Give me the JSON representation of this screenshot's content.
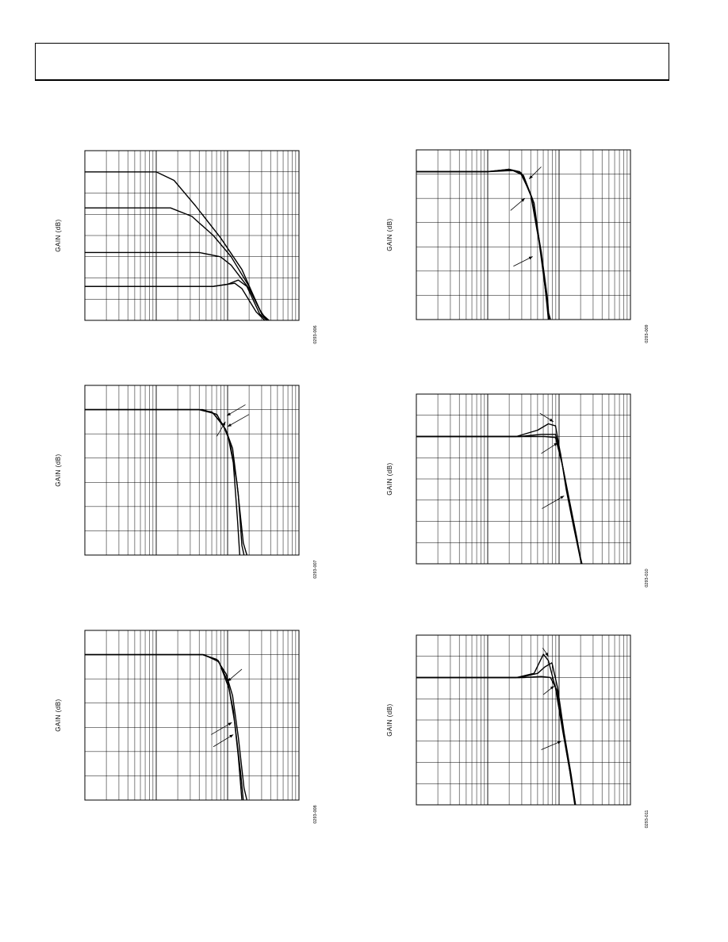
{
  "page": {
    "header_text": "",
    "accent_color": "#000000"
  },
  "chart_data": [
    {
      "id": "c1",
      "type": "line",
      "xscale": "log",
      "ylabel": "GAIN (dB)",
      "figure_id": "0293-006",
      "grid": true,
      "xdecades": 3,
      "ylim": [
        0,
        8
      ],
      "series": [
        {
          "points": [
            [
              0,
              7.0
            ],
            [
              1.0,
              7.0
            ],
            [
              1.25,
              6.6
            ],
            [
              1.55,
              5.4
            ],
            [
              1.9,
              3.9
            ],
            [
              2.2,
              2.4
            ],
            [
              2.45,
              0.5
            ],
            [
              2.55,
              0
            ]
          ]
        },
        {
          "points": [
            [
              0,
              5.3
            ],
            [
              1.2,
              5.3
            ],
            [
              1.5,
              4.9
            ],
            [
              1.8,
              4.0
            ],
            [
              2.05,
              3.0
            ],
            [
              2.3,
              1.6
            ],
            [
              2.48,
              0.3
            ],
            [
              2.56,
              0
            ]
          ]
        },
        {
          "points": [
            [
              0,
              3.2
            ],
            [
              1.6,
              3.2
            ],
            [
              1.9,
              3.0
            ],
            [
              2.05,
              2.6
            ],
            [
              2.3,
              1.5
            ],
            [
              2.48,
              0.3
            ],
            [
              2.58,
              0
            ]
          ]
        },
        {
          "points": [
            [
              0,
              1.6
            ],
            [
              1.8,
              1.6
            ],
            [
              2.0,
              1.7
            ],
            [
              2.15,
              1.9
            ],
            [
              2.27,
              1.6
            ],
            [
              2.45,
              0.3
            ],
            [
              2.55,
              0
            ]
          ]
        },
        {
          "points": [
            [
              0,
              1.6
            ],
            [
              1.8,
              1.6
            ],
            [
              2.1,
              1.75
            ],
            [
              2.2,
              1.5
            ],
            [
              2.4,
              0.4
            ],
            [
              2.52,
              0
            ]
          ]
        }
      ],
      "arrows": []
    },
    {
      "id": "c2",
      "type": "line",
      "xscale": "log",
      "ylabel": "GAIN (dB)",
      "figure_id": "0293-007",
      "grid": true,
      "xdecades": 3,
      "ylim": [
        0,
        7
      ],
      "series": [
        {
          "points": [
            [
              0,
              6.0
            ],
            [
              1.6,
              6.0
            ],
            [
              1.78,
              5.9
            ],
            [
              1.93,
              5.4
            ],
            [
              2.03,
              4.7
            ],
            [
              2.13,
              3.0
            ],
            [
              2.22,
              0.5
            ],
            [
              2.27,
              0
            ]
          ]
        },
        {
          "points": [
            [
              0,
              6.0
            ],
            [
              1.6,
              6.0
            ],
            [
              1.8,
              5.85
            ],
            [
              1.97,
              5.2
            ],
            [
              2.07,
              4.4
            ],
            [
              2.15,
              2.5
            ],
            [
              2.2,
              0.4
            ],
            [
              2.23,
              0
            ]
          ]
        },
        {
          "points": [
            [
              0,
              6.0
            ],
            [
              1.65,
              6.0
            ],
            [
              1.85,
              5.8
            ],
            [
              2.0,
              5.0
            ],
            [
              2.08,
              3.8
            ],
            [
              2.14,
              1.4
            ],
            [
              2.17,
              0
            ]
          ]
        }
      ],
      "arrows": [
        {
          "from": [
            2.25,
            6.2
          ],
          "to": [
            1.99,
            5.75
          ]
        },
        {
          "from": [
            2.3,
            5.8
          ],
          "to": [
            2.0,
            5.3
          ]
        },
        {
          "from": [
            1.85,
            4.9
          ],
          "to": [
            1.97,
            5.5
          ]
        }
      ]
    },
    {
      "id": "c3",
      "type": "line",
      "xscale": "log",
      "ylabel": "GAIN (dB)",
      "figure_id": "0293-008",
      "grid": true,
      "xdecades": 3,
      "ylim": [
        0,
        7
      ],
      "series": [
        {
          "points": [
            [
              0,
              6.0
            ],
            [
              1.65,
              6.0
            ],
            [
              1.85,
              5.8
            ],
            [
              1.98,
              5.2
            ],
            [
              2.07,
              4.3
            ],
            [
              2.15,
              2.6
            ],
            [
              2.23,
              0.5
            ],
            [
              2.27,
              0
            ]
          ]
        },
        {
          "points": [
            [
              0,
              6.0
            ],
            [
              1.65,
              6.0
            ],
            [
              1.87,
              5.75
            ],
            [
              2.0,
              4.9
            ],
            [
              2.08,
              3.7
            ],
            [
              2.15,
              1.8
            ],
            [
              2.2,
              0
            ]
          ]
        },
        {
          "points": [
            [
              0,
              6.0
            ],
            [
              1.67,
              6.0
            ],
            [
              1.88,
              5.7
            ],
            [
              2.02,
              4.6
            ],
            [
              2.1,
              3.2
            ],
            [
              2.18,
              1.2
            ],
            [
              2.22,
              0
            ]
          ]
        }
      ],
      "arrows": [
        {
          "from": [
            2.2,
            5.4
          ],
          "to": [
            2.0,
            4.9
          ]
        },
        {
          "from": [
            1.77,
            2.7
          ],
          "to": [
            2.06,
            3.2
          ]
        },
        {
          "from": [
            1.8,
            2.2
          ],
          "to": [
            2.08,
            2.7
          ]
        }
      ]
    },
    {
      "id": "c4",
      "type": "line",
      "xscale": "log",
      "ylabel": "GAIN (dB)",
      "figure_id": "0293-009",
      "grid": true,
      "xdecades": 3,
      "ylim": [
        0,
        7
      ],
      "series": [
        {
          "points": [
            [
              0,
              6.1
            ],
            [
              1.0,
              6.1
            ],
            [
              1.3,
              6.2
            ],
            [
              1.45,
              6.1
            ],
            [
              1.6,
              5.2
            ],
            [
              1.72,
              3.2
            ],
            [
              1.85,
              0.3
            ],
            [
              1.88,
              0
            ]
          ]
        },
        {
          "points": [
            [
              0,
              6.1
            ],
            [
              1.0,
              6.1
            ],
            [
              1.3,
              6.2
            ],
            [
              1.47,
              6.05
            ],
            [
              1.62,
              5.0
            ],
            [
              1.75,
              2.8
            ],
            [
              1.84,
              0.8
            ],
            [
              1.86,
              0
            ]
          ]
        },
        {
          "points": [
            [
              0,
              6.1
            ],
            [
              1.0,
              6.1
            ],
            [
              1.35,
              6.15
            ],
            [
              1.5,
              5.95
            ],
            [
              1.65,
              4.8
            ],
            [
              1.78,
              2.0
            ],
            [
              1.83,
              0.6
            ],
            [
              1.85,
              0
            ]
          ]
        }
      ],
      "arrows": [
        {
          "from": [
            1.75,
            6.3
          ],
          "to": [
            1.58,
            5.8
          ]
        },
        {
          "from": [
            1.32,
            4.5
          ],
          "to": [
            1.52,
            5.0
          ]
        },
        {
          "from": [
            1.36,
            2.2
          ],
          "to": [
            1.63,
            2.6
          ]
        }
      ]
    },
    {
      "id": "c5",
      "type": "line",
      "xscale": "log",
      "ylabel": "GAIN (dB)",
      "figure_id": "0293-010",
      "grid": true,
      "xdecades": 3,
      "ylim": [
        0,
        8
      ],
      "series": [
        {
          "points": [
            [
              0,
              6.0
            ],
            [
              1.4,
              6.0
            ],
            [
              1.7,
              6.3
            ],
            [
              1.85,
              6.6
            ],
            [
              1.95,
              6.5
            ],
            [
              2.05,
              4.6
            ],
            [
              2.15,
              2.8
            ],
            [
              2.3,
              0.3
            ],
            [
              2.32,
              0
            ]
          ]
        },
        {
          "points": [
            [
              0,
              6.0
            ],
            [
              1.45,
              6.0
            ],
            [
              1.75,
              6.1
            ],
            [
              1.95,
              6.1
            ],
            [
              2.02,
              5.2
            ],
            [
              2.1,
              3.5
            ],
            [
              2.2,
              1.8
            ],
            [
              2.3,
              0.2
            ],
            [
              2.32,
              0
            ]
          ]
        },
        {
          "points": [
            [
              0,
              6.0
            ],
            [
              1.5,
              6.0
            ],
            [
              1.8,
              6.0
            ],
            [
              1.95,
              5.95
            ],
            [
              2.05,
              4.6
            ],
            [
              2.15,
              2.9
            ],
            [
              2.25,
              1.2
            ],
            [
              2.31,
              0
            ]
          ]
        }
      ],
      "arrows": [
        {
          "from": [
            1.73,
            7.1
          ],
          "to": [
            1.92,
            6.7
          ]
        },
        {
          "from": [
            1.75,
            5.2
          ],
          "to": [
            1.98,
            5.7
          ]
        },
        {
          "from": [
            1.76,
            2.6
          ],
          "to": [
            2.07,
            3.2
          ]
        }
      ]
    },
    {
      "id": "c6",
      "type": "line",
      "xscale": "log",
      "ylabel": "GAIN (dB)",
      "figure_id": "0293-011",
      "grid": true,
      "xdecades": 3,
      "ylim": [
        0,
        8
      ],
      "series": [
        {
          "points": [
            [
              0,
              6.0
            ],
            [
              1.4,
              6.0
            ],
            [
              1.65,
              6.2
            ],
            [
              1.78,
              7.1
            ],
            [
              1.85,
              6.8
            ],
            [
              1.95,
              5.5
            ],
            [
              2.05,
              3.5
            ],
            [
              2.15,
              1.6
            ],
            [
              2.23,
              0
            ]
          ]
        },
        {
          "points": [
            [
              0,
              6.0
            ],
            [
              1.45,
              6.0
            ],
            [
              1.7,
              6.2
            ],
            [
              1.8,
              6.5
            ],
            [
              1.9,
              6.7
            ],
            [
              1.98,
              5.5
            ],
            [
              2.07,
              3.4
            ],
            [
              2.17,
              1.4
            ],
            [
              2.23,
              0
            ]
          ]
        },
        {
          "points": [
            [
              0,
              6.0
            ],
            [
              1.5,
              6.0
            ],
            [
              1.75,
              6.05
            ],
            [
              1.88,
              6.0
            ],
            [
              1.97,
              5.4
            ],
            [
              2.05,
              3.6
            ],
            [
              2.15,
              1.6
            ],
            [
              2.22,
              0
            ]
          ]
        }
      ],
      "arrows": [
        {
          "from": [
            1.77,
            7.4
          ],
          "to": [
            1.85,
            7.0
          ]
        },
        {
          "from": [
            1.78,
            5.2
          ],
          "to": [
            1.93,
            5.6
          ]
        },
        {
          "from": [
            1.75,
            2.6
          ],
          "to": [
            2.03,
            3.0
          ]
        }
      ]
    }
  ]
}
